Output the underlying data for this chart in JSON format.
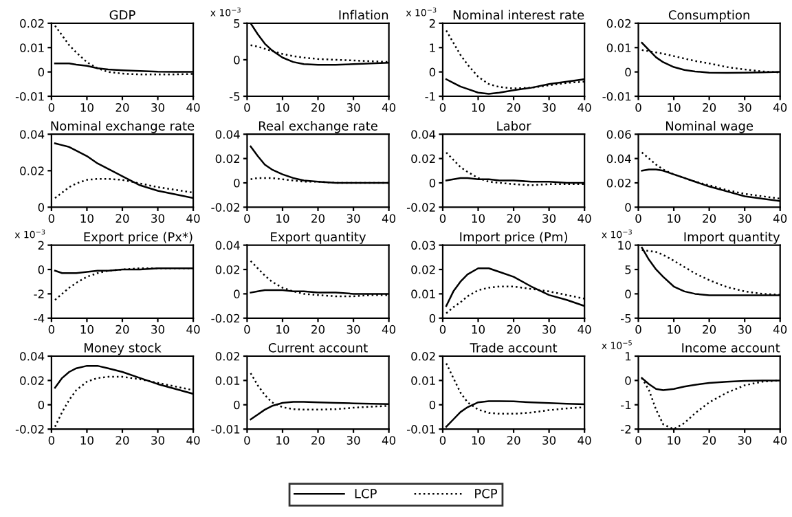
{
  "chart_data": [
    {
      "type": "line",
      "title": "GDP",
      "x": [
        1,
        3,
        5,
        7,
        10,
        13,
        16,
        20,
        25,
        30,
        35,
        40
      ],
      "xlim": [
        0,
        40
      ],
      "xticks": [
        0,
        10,
        20,
        30,
        40
      ],
      "ylim": [
        -0.01,
        0.02
      ],
      "yticks": [
        -0.01,
        0,
        0.01,
        0.02
      ],
      "legend": "bottom",
      "series": [
        {
          "name": "LCP",
          "color": "#000000",
          "line_style": "solid",
          "values": [
            0.0035,
            0.0035,
            0.0035,
            0.003,
            0.0025,
            0.0015,
            0.001,
            0.0007,
            0.0004,
            0.0001,
            0,
            0
          ]
        },
        {
          "name": "PCP",
          "color": "#000000",
          "line_style": "dotted",
          "values": [
            0.019,
            0.015,
            0.011,
            0.008,
            0.004,
            0.0015,
            0,
            -0.0007,
            -0.001,
            -0.001,
            -0.001,
            -0.0008
          ]
        }
      ]
    },
    {
      "type": "line",
      "title": "Inflation",
      "annotations": [
        "x 10$^{−3}$"
      ],
      "x": [
        1,
        3,
        5,
        7,
        10,
        13,
        16,
        20,
        25,
        30,
        35,
        40
      ],
      "xlim": [
        0,
        40
      ],
      "xticks": [
        0,
        10,
        20,
        30,
        40
      ],
      "ylim": [
        -5,
        5
      ],
      "yticks": [
        -5,
        0,
        5
      ],
      "series": [
        {
          "color": "#000000",
          "line_style": "solid",
          "values": [
            5,
            3.5,
            2.2,
            1.3,
            0.3,
            -0.3,
            -0.6,
            -0.7,
            -0.7,
            -0.6,
            -0.5,
            -0.4
          ]
        },
        {
          "color": "#000000",
          "line_style": "dotted",
          "values": [
            2,
            1.8,
            1.5,
            1.2,
            0.8,
            0.5,
            0.3,
            0.1,
            0,
            -0.1,
            -0.2,
            -0.3
          ]
        }
      ]
    },
    {
      "type": "line",
      "title": "Nominal interest rate",
      "annotations": [
        "x 10$^{−3}$"
      ],
      "x": [
        1,
        3,
        5,
        7,
        10,
        13,
        16,
        20,
        25,
        30,
        35,
        40
      ],
      "xlim": [
        0,
        40
      ],
      "xticks": [
        0,
        10,
        20,
        30,
        40
      ],
      "ylim": [
        -1,
        2
      ],
      "yticks": [
        -1,
        0,
        1,
        2
      ],
      "series": [
        {
          "color": "#000000",
          "line_style": "solid",
          "values": [
            -0.3,
            -0.45,
            -0.6,
            -0.7,
            -0.85,
            -0.9,
            -0.85,
            -0.75,
            -0.65,
            -0.5,
            -0.4,
            -0.3
          ]
        },
        {
          "color": "#000000",
          "line_style": "dotted",
          "values": [
            1.7,
            1.2,
            0.7,
            0.3,
            -0.2,
            -0.5,
            -0.62,
            -0.68,
            -0.65,
            -0.55,
            -0.45,
            -0.4
          ]
        }
      ]
    },
    {
      "type": "line",
      "title": "Consumption",
      "x": [
        1,
        3,
        5,
        7,
        10,
        13,
        16,
        20,
        25,
        30,
        35,
        40
      ],
      "xlim": [
        0,
        40
      ],
      "xticks": [
        0,
        10,
        20,
        30,
        40
      ],
      "ylim": [
        -0.01,
        0.02
      ],
      "yticks": [
        -0.01,
        0,
        0.01,
        0.02
      ],
      "series": [
        {
          "color": "#000000",
          "line_style": "solid",
          "values": [
            0.012,
            0.009,
            0.006,
            0.004,
            0.002,
            0.0008,
            0.0002,
            -0.0003,
            -0.0004,
            -0.0003,
            -0.0002,
            0
          ]
        },
        {
          "color": "#000000",
          "line_style": "dotted",
          "values": [
            0.009,
            0.0085,
            0.008,
            0.0075,
            0.0065,
            0.0055,
            0.0045,
            0.0035,
            0.002,
            0.001,
            0.0002,
            -0.0002
          ]
        }
      ]
    },
    {
      "type": "line",
      "title": "Nominal exchange rate",
      "x": [
        1,
        3,
        5,
        7,
        10,
        13,
        16,
        20,
        25,
        30,
        35,
        40
      ],
      "xlim": [
        0,
        40
      ],
      "xticks": [
        0,
        10,
        20,
        30,
        40
      ],
      "ylim": [
        0,
        0.04
      ],
      "yticks": [
        0,
        0.02,
        0.04
      ],
      "series": [
        {
          "color": "#000000",
          "line_style": "solid",
          "values": [
            0.035,
            0.034,
            0.033,
            0.031,
            0.028,
            0.024,
            0.021,
            0.017,
            0.012,
            0.009,
            0.007,
            0.005
          ]
        },
        {
          "color": "#000000",
          "line_style": "dotted",
          "values": [
            0.005,
            0.008,
            0.011,
            0.013,
            0.015,
            0.0155,
            0.0155,
            0.015,
            0.013,
            0.011,
            0.0095,
            0.008
          ]
        }
      ]
    },
    {
      "type": "line",
      "title": "Real exchange rate",
      "x": [
        1,
        3,
        5,
        7,
        10,
        13,
        16,
        20,
        25,
        30,
        35,
        40
      ],
      "xlim": [
        0,
        40
      ],
      "xticks": [
        0,
        10,
        20,
        30,
        40
      ],
      "ylim": [
        -0.02,
        0.04
      ],
      "yticks": [
        -0.02,
        0,
        0.02,
        0.04
      ],
      "series": [
        {
          "color": "#000000",
          "line_style": "solid",
          "values": [
            0.03,
            0.022,
            0.015,
            0.011,
            0.007,
            0.004,
            0.002,
            0.001,
            0,
            0,
            0,
            0
          ]
        },
        {
          "color": "#000000",
          "line_style": "dotted",
          "values": [
            0.003,
            0.004,
            0.004,
            0.004,
            0.003,
            0.002,
            0.001,
            0.001,
            0,
            0,
            0,
            0
          ]
        }
      ]
    },
    {
      "type": "line",
      "title": "Labor",
      "x": [
        1,
        3,
        5,
        7,
        10,
        13,
        16,
        20,
        25,
        30,
        35,
        40
      ],
      "xlim": [
        0,
        40
      ],
      "xticks": [
        0,
        10,
        20,
        30,
        40
      ],
      "ylim": [
        -0.02,
        0.04
      ],
      "yticks": [
        -0.02,
        0,
        0.02,
        0.04
      ],
      "series": [
        {
          "color": "#000000",
          "line_style": "solid",
          "values": [
            0.002,
            0.003,
            0.004,
            0.004,
            0.003,
            0.003,
            0.002,
            0.002,
            0.001,
            0.001,
            0,
            0
          ]
        },
        {
          "color": "#000000",
          "line_style": "dotted",
          "values": [
            0.025,
            0.019,
            0.013,
            0.009,
            0.004,
            0.001,
            0,
            -0.001,
            -0.002,
            -0.001,
            -0.001,
            -0.001
          ]
        }
      ]
    },
    {
      "type": "line",
      "title": "Nominal wage",
      "x": [
        1,
        3,
        5,
        7,
        10,
        13,
        16,
        20,
        25,
        30,
        35,
        40
      ],
      "xlim": [
        0,
        40
      ],
      "xticks": [
        0,
        10,
        20,
        30,
        40
      ],
      "ylim": [
        0,
        0.06
      ],
      "yticks": [
        0,
        0.02,
        0.04,
        0.06
      ],
      "series": [
        {
          "color": "#000000",
          "line_style": "solid",
          "values": [
            0.03,
            0.031,
            0.031,
            0.03,
            0.027,
            0.024,
            0.021,
            0.017,
            0.013,
            0.009,
            0.007,
            0.005
          ]
        },
        {
          "color": "#000000",
          "line_style": "dotted",
          "values": [
            0.045,
            0.04,
            0.035,
            0.031,
            0.027,
            0.024,
            0.021,
            0.018,
            0.014,
            0.011,
            0.009,
            0.007
          ]
        }
      ]
    },
    {
      "type": "line",
      "title": "Export price (Px*)",
      "annotations": [
        "x 10$^{−3}$"
      ],
      "x": [
        1,
        3,
        5,
        7,
        10,
        13,
        16,
        20,
        25,
        30,
        35,
        40
      ],
      "xlim": [
        0,
        40
      ],
      "xticks": [
        0,
        10,
        20,
        30,
        40
      ],
      "ylim": [
        -4,
        2
      ],
      "yticks": [
        -4,
        -2,
        0,
        2
      ],
      "series": [
        {
          "color": "#000000",
          "line_style": "solid",
          "values": [
            -0.1,
            -0.3,
            -0.3,
            -0.3,
            -0.2,
            -0.1,
            -0.1,
            0,
            0,
            0.1,
            0.1,
            0.1
          ]
        },
        {
          "color": "#000000",
          "line_style": "dotted",
          "values": [
            -2.5,
            -2,
            -1.5,
            -1.1,
            -0.6,
            -0.3,
            -0.1,
            0,
            0.1,
            0.1,
            0.1,
            0.1
          ]
        }
      ]
    },
    {
      "type": "line",
      "title": "Export quantity",
      "x": [
        1,
        3,
        5,
        7,
        10,
        13,
        16,
        20,
        25,
        30,
        35,
        40
      ],
      "xlim": [
        0,
        40
      ],
      "xticks": [
        0,
        10,
        20,
        30,
        40
      ],
      "ylim": [
        -0.02,
        0.04
      ],
      "yticks": [
        -0.02,
        0,
        0.02,
        0.04
      ],
      "series": [
        {
          "color": "#000000",
          "line_style": "solid",
          "values": [
            0.001,
            0.002,
            0.003,
            0.003,
            0.003,
            0.002,
            0.002,
            0.001,
            0.001,
            0,
            0,
            0
          ]
        },
        {
          "color": "#000000",
          "line_style": "dotted",
          "values": [
            0.027,
            0.021,
            0.015,
            0.01,
            0.005,
            0.002,
            0,
            -0.001,
            -0.002,
            -0.002,
            -0.001,
            -0.001
          ]
        }
      ]
    },
    {
      "type": "line",
      "title": "Import price (Pm)",
      "x": [
        1,
        3,
        5,
        7,
        10,
        13,
        16,
        20,
        25,
        30,
        35,
        40
      ],
      "xlim": [
        0,
        40
      ],
      "xticks": [
        0,
        10,
        20,
        30,
        40
      ],
      "ylim": [
        0,
        0.03
      ],
      "yticks": [
        0,
        0.01,
        0.02,
        0.03
      ],
      "series": [
        {
          "color": "#000000",
          "line_style": "solid",
          "values": [
            0.005,
            0.011,
            0.015,
            0.018,
            0.0205,
            0.0205,
            0.019,
            0.017,
            0.013,
            0.0095,
            0.0075,
            0.005
          ]
        },
        {
          "color": "#000000",
          "line_style": "dotted",
          "values": [
            0.002,
            0.0045,
            0.0065,
            0.009,
            0.0115,
            0.0125,
            0.013,
            0.013,
            0.012,
            0.011,
            0.0095,
            0.008
          ]
        }
      ]
    },
    {
      "type": "line",
      "title": "Import quantity",
      "annotations": [
        "x 10$^{−3}$"
      ],
      "x": [
        1,
        3,
        5,
        7,
        10,
        13,
        16,
        20,
        25,
        30,
        35,
        40
      ],
      "xlim": [
        0,
        40
      ],
      "xticks": [
        0,
        10,
        20,
        30,
        40
      ],
      "ylim": [
        -5,
        10
      ],
      "yticks": [
        -5,
        0,
        5,
        10
      ],
      "series": [
        {
          "color": "#000000",
          "line_style": "solid",
          "values": [
            9.5,
            7,
            5,
            3.5,
            1.5,
            0.5,
            0,
            -0.3,
            -0.3,
            -0.3,
            -0.3,
            -0.3
          ]
        },
        {
          "color": "#000000",
          "line_style": "dotted",
          "values": [
            9,
            8.8,
            8.6,
            8,
            6.8,
            5.5,
            4.2,
            2.8,
            1.4,
            0.5,
            0,
            -0.2
          ]
        }
      ]
    },
    {
      "type": "line",
      "title": "Money stock",
      "x": [
        1,
        3,
        5,
        7,
        10,
        13,
        16,
        20,
        25,
        30,
        35,
        40
      ],
      "xlim": [
        0,
        40
      ],
      "xticks": [
        0,
        10,
        20,
        30,
        40
      ],
      "ylim": [
        -0.02,
        0.04
      ],
      "yticks": [
        -0.02,
        0,
        0.02,
        0.04
      ],
      "series": [
        {
          "color": "#000000",
          "line_style": "solid",
          "values": [
            0.014,
            0.022,
            0.027,
            0.03,
            0.032,
            0.032,
            0.03,
            0.027,
            0.022,
            0.017,
            0.013,
            0.009
          ]
        },
        {
          "color": "#000000",
          "line_style": "dotted",
          "values": [
            -0.018,
            -0.006,
            0.004,
            0.012,
            0.019,
            0.022,
            0.023,
            0.023,
            0.021,
            0.018,
            0.015,
            0.012
          ]
        }
      ]
    },
    {
      "type": "line",
      "title": "Current account",
      "x": [
        1,
        3,
        5,
        7,
        10,
        13,
        16,
        20,
        25,
        30,
        35,
        40
      ],
      "xlim": [
        0,
        40
      ],
      "xticks": [
        0,
        10,
        20,
        30,
        40
      ],
      "ylim": [
        -0.01,
        0.02
      ],
      "yticks": [
        -0.01,
        0,
        0.01,
        0.02
      ],
      "series": [
        {
          "color": "#000000",
          "line_style": "solid",
          "values": [
            -0.006,
            -0.004,
            -0.002,
            -0.0005,
            0.0008,
            0.0012,
            0.0012,
            0.001,
            0.0008,
            0.0006,
            0.0004,
            0.0003
          ]
        },
        {
          "color": "#000000",
          "line_style": "dotted",
          "values": [
            0.013,
            0.008,
            0.004,
            0.001,
            -0.001,
            -0.0018,
            -0.002,
            -0.002,
            -0.0018,
            -0.0012,
            -0.0008,
            -0.0004
          ]
        }
      ]
    },
    {
      "type": "line",
      "title": "Trade account",
      "x": [
        1,
        3,
        5,
        7,
        10,
        13,
        16,
        20,
        25,
        30,
        35,
        40
      ],
      "xlim": [
        0,
        40
      ],
      "xticks": [
        0,
        10,
        20,
        30,
        40
      ],
      "ylim": [
        -0.01,
        0.02
      ],
      "yticks": [
        -0.01,
        0,
        0.01,
        0.02
      ],
      "series": [
        {
          "color": "#000000",
          "line_style": "solid",
          "values": [
            -0.009,
            -0.006,
            -0.003,
            -0.001,
            0.001,
            0.0015,
            0.0015,
            0.0014,
            0.001,
            0.0007,
            0.0004,
            0.0002
          ]
        },
        {
          "color": "#000000",
          "line_style": "dotted",
          "values": [
            0.017,
            0.011,
            0.005,
            0.001,
            -0.002,
            -0.0033,
            -0.0037,
            -0.0037,
            -0.0032,
            -0.0022,
            -0.0015,
            -0.001
          ]
        }
      ]
    },
    {
      "type": "line",
      "title": "Income account",
      "annotations": [
        "x 10$^{−5}$"
      ],
      "x": [
        1,
        3,
        5,
        7,
        10,
        13,
        16,
        20,
        25,
        30,
        35,
        40
      ],
      "xlim": [
        0,
        40
      ],
      "xticks": [
        0,
        10,
        20,
        30,
        40
      ],
      "ylim": [
        -2,
        1
      ],
      "yticks": [
        -2,
        -1,
        0,
        1
      ],
      "series": [
        {
          "color": "#000000",
          "line_style": "solid",
          "values": [
            0.1,
            -0.15,
            -0.35,
            -0.4,
            -0.35,
            -0.25,
            -0.18,
            -0.1,
            -0.05,
            -0.02,
            0,
            0
          ]
        },
        {
          "color": "#000000",
          "line_style": "dotted",
          "values": [
            0.1,
            -0.4,
            -1.2,
            -1.8,
            -2.0,
            -1.75,
            -1.35,
            -0.9,
            -0.5,
            -0.2,
            -0.05,
            0
          ]
        }
      ]
    }
  ]
}
